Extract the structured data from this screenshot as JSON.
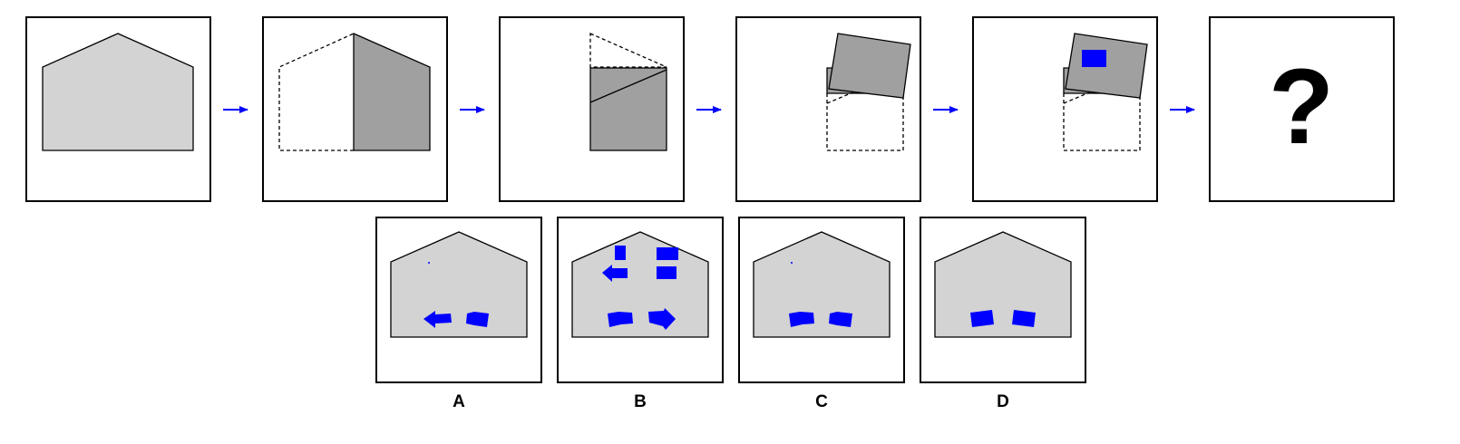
{
  "colors": {
    "panel_border": "#000000",
    "house_fill": "#d3d3d3",
    "folded_fill": "#a0a0a0",
    "hole_fill": "#0000ff",
    "arrow": "#0000ff"
  },
  "sequence": {
    "arrow_icon": "right-arrow-icon",
    "question_mark": "?"
  },
  "options": {
    "A": "A",
    "B": "B",
    "C": "C",
    "D": "D"
  }
}
